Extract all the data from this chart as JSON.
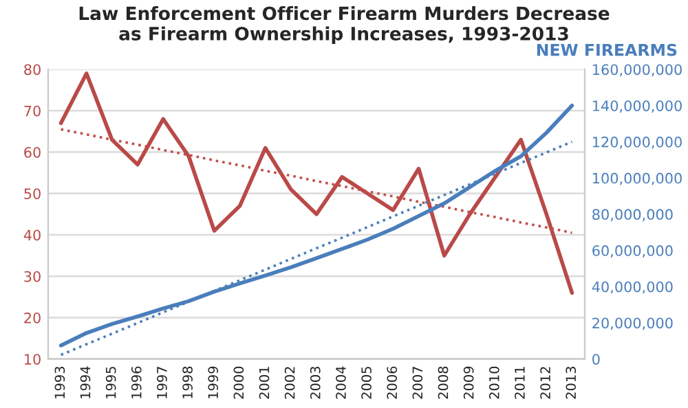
{
  "chart_data": {
    "type": "line",
    "title": "Law Enforcement Officer Firearm Murders Decrease\nas Firearm Ownership Increases, 1993-2013",
    "y2label": "NEW FIREARMS",
    "categories": [
      "1993",
      "1994",
      "1995",
      "1996",
      "1997",
      "1998",
      "1999",
      "2000",
      "2001",
      "2002",
      "2003",
      "2004",
      "2005",
      "2006",
      "2007",
      "2008",
      "2009",
      "2010",
      "2011",
      "2012",
      "2013"
    ],
    "series": [
      {
        "color": "#b94a48",
        "line_style": "solid",
        "values": [
          67,
          79,
          63,
          57,
          68,
          59,
          41,
          47,
          61,
          51,
          45,
          54,
          50,
          46,
          56,
          35,
          45,
          54,
          63,
          45,
          26
        ]
      },
      {
        "color": "#4a7ebb",
        "line_style": "solid",
        "axis": "y2",
        "values": [
          7500000,
          14400000,
          19400000,
          23500000,
          27900000,
          32000000,
          37200000,
          41800000,
          46100000,
          50700000,
          55700000,
          60800000,
          66000000,
          72000000,
          79000000,
          86000000,
          95000000,
          104000000,
          112000000,
          125000000,
          140000000
        ]
      },
      {
        "color": "#c0504d",
        "line_style": "dotted",
        "values": [
          65.5,
          64.3,
          63,
          61.8,
          60.5,
          59.3,
          58,
          56.8,
          55.5,
          54.3,
          53,
          51.8,
          50.5,
          49.3,
          48,
          46.8,
          45.5,
          44.3,
          43,
          41.8,
          40.5
        ]
      },
      {
        "color": "#4a7ebb",
        "line_style": "dotted",
        "axis": "y2",
        "values": [
          2300000,
          8200000,
          14000000,
          19900000,
          25800000,
          31700000,
          37600000,
          43500000,
          49400000,
          55300000,
          61200000,
          67000000,
          72900000,
          78800000,
          84700000,
          90600000,
          96500000,
          102400000,
          108300000,
          114100000,
          120000000
        ]
      }
    ],
    "ylim": [
      10,
      80
    ],
    "yticks": [
      10,
      20,
      30,
      40,
      50,
      60,
      70,
      80
    ],
    "y2lim": [
      0,
      160000000
    ],
    "y2ticks": [
      {
        "value": 0,
        "label": "0"
      },
      {
        "value": 20000000,
        "label": "20,000,000"
      },
      {
        "value": 40000000,
        "label": "40,000,000"
      },
      {
        "value": 60000000,
        "label": "60,000,000"
      },
      {
        "value": 80000000,
        "label": "80,000,000"
      },
      {
        "value": 100000000,
        "label": "100,000,000"
      },
      {
        "value": 120000000,
        "label": "120,000,000"
      },
      {
        "value": 140000000,
        "label": "140,000,000"
      },
      {
        "value": 160000000,
        "label": "160,000,000"
      }
    ],
    "grid": "y",
    "legend": false
  }
}
